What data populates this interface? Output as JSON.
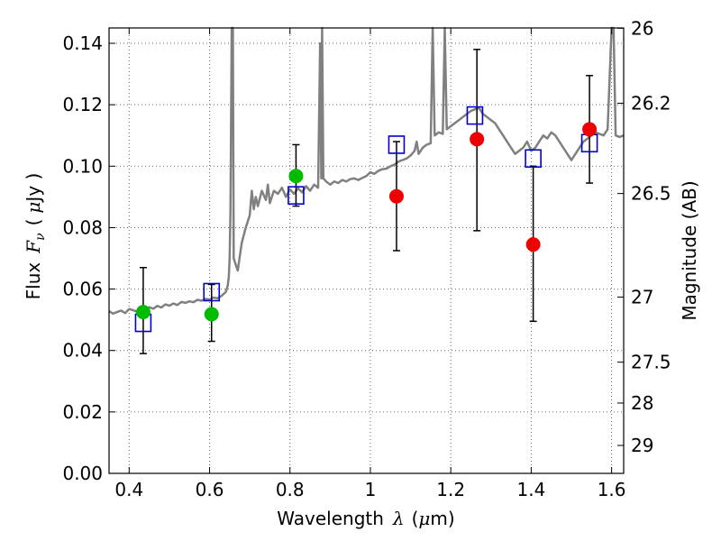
{
  "chart_data": {
    "type": "scatter",
    "xlabel_prefix": "Wavelength",
    "xlabel_symbol": "λ",
    "xlabel_unit_open": "(",
    "xlabel_unit_mu": "μ",
    "xlabel_unit_rest": "m)",
    "ylabel_prefix": "Flux",
    "ylabel_symbol": "F",
    "ylabel_subscript": "ν",
    "ylabel_unit_open": "(",
    "ylabel_unit_mu": "μ",
    "ylabel_unit_rest": "Jy )",
    "y2label": "Magnitude (AB)",
    "xlim": [
      0.35,
      1.63
    ],
    "ylim": [
      0.0,
      0.145
    ],
    "xticks": [
      0.4,
      0.6,
      0.8,
      1.0,
      1.2,
      1.4,
      1.6
    ],
    "xtick_labels": [
      "0.4",
      "0.6",
      "0.8",
      "1",
      "1.2",
      "1.4",
      "1.6"
    ],
    "yticks": [
      0.0,
      0.02,
      0.04,
      0.06,
      0.08,
      0.1,
      0.12,
      0.14
    ],
    "ytick_labels": [
      "0.00",
      "0.02",
      "0.04",
      "0.06",
      "0.08",
      "0.10",
      "0.12",
      "0.14"
    ],
    "y2ticks": [
      {
        "flux": 0.1449,
        "label": "26"
      },
      {
        "flux": 0.1205,
        "label": "26.2"
      },
      {
        "flux": 0.0911,
        "label": "26.5"
      },
      {
        "flux": 0.0574,
        "label": "27"
      },
      {
        "flux": 0.0362,
        "label": "27.5"
      },
      {
        "flux": 0.0229,
        "label": "28"
      },
      {
        "flux": 0.0091,
        "label": "29"
      }
    ],
    "grid": true,
    "colors": {
      "spectrum": "#808080",
      "model": "#0000cc",
      "detected_green": "#00bb00",
      "detected_red": "#ee0000",
      "errorbar": "#000000",
      "grid": "#666666"
    },
    "series": [
      {
        "name": "model spectrum",
        "kind": "line",
        "points": [
          [
            0.35,
            0.0528
          ],
          [
            0.36,
            0.052
          ],
          [
            0.37,
            0.0525
          ],
          [
            0.38,
            0.053
          ],
          [
            0.39,
            0.0522
          ],
          [
            0.4,
            0.0535
          ],
          [
            0.41,
            0.0531
          ],
          [
            0.42,
            0.0526
          ],
          [
            0.43,
            0.0534
          ],
          [
            0.44,
            0.053
          ],
          [
            0.45,
            0.0541
          ],
          [
            0.46,
            0.0536
          ],
          [
            0.47,
            0.0545
          ],
          [
            0.48,
            0.054
          ],
          [
            0.49,
            0.055
          ],
          [
            0.5,
            0.0546
          ],
          [
            0.51,
            0.0553
          ],
          [
            0.52,
            0.0548
          ],
          [
            0.53,
            0.0558
          ],
          [
            0.54,
            0.0555
          ],
          [
            0.55,
            0.056
          ],
          [
            0.56,
            0.0557
          ],
          [
            0.57,
            0.0565
          ],
          [
            0.58,
            0.0562
          ],
          [
            0.59,
            0.0568
          ],
          [
            0.6,
            0.0566
          ],
          [
            0.61,
            0.0572
          ],
          [
            0.62,
            0.057
          ],
          [
            0.63,
            0.0578
          ],
          [
            0.64,
            0.059
          ],
          [
            0.645,
            0.061
          ],
          [
            0.648,
            0.064
          ],
          [
            0.65,
            0.07
          ],
          [
            0.652,
            0.085
          ],
          [
            0.655,
            0.145
          ],
          [
            0.658,
            0.145
          ],
          [
            0.66,
            0.07
          ],
          [
            0.665,
            0.068
          ],
          [
            0.67,
            0.066
          ],
          [
            0.68,
            0.075
          ],
          [
            0.69,
            0.08
          ],
          [
            0.7,
            0.084
          ],
          [
            0.705,
            0.092
          ],
          [
            0.71,
            0.086
          ],
          [
            0.715,
            0.09
          ],
          [
            0.72,
            0.087
          ],
          [
            0.73,
            0.092
          ],
          [
            0.74,
            0.089
          ],
          [
            0.745,
            0.094
          ],
          [
            0.75,
            0.088
          ],
          [
            0.76,
            0.092
          ],
          [
            0.77,
            0.091
          ],
          [
            0.78,
            0.093
          ],
          [
            0.79,
            0.09
          ],
          [
            0.8,
            0.0925
          ],
          [
            0.81,
            0.091
          ],
          [
            0.82,
            0.0928
          ],
          [
            0.83,
            0.0915
          ],
          [
            0.84,
            0.0935
          ],
          [
            0.85,
            0.092
          ],
          [
            0.86,
            0.094
          ],
          [
            0.87,
            0.093
          ],
          [
            0.875,
            0.14
          ],
          [
            0.878,
            0.096
          ],
          [
            0.88,
            0.145
          ],
          [
            0.883,
            0.096
          ],
          [
            0.89,
            0.095
          ],
          [
            0.9,
            0.094
          ],
          [
            0.91,
            0.095
          ],
          [
            0.92,
            0.0945
          ],
          [
            0.93,
            0.0955
          ],
          [
            0.94,
            0.095
          ],
          [
            0.95,
            0.0958
          ],
          [
            0.96,
            0.096
          ],
          [
            0.97,
            0.0955
          ],
          [
            0.98,
            0.0962
          ],
          [
            0.99,
            0.0968
          ],
          [
            1.0,
            0.098
          ],
          [
            1.01,
            0.0975
          ],
          [
            1.02,
            0.0985
          ],
          [
            1.03,
            0.099
          ],
          [
            1.04,
            0.0992
          ],
          [
            1.05,
            0.1
          ],
          [
            1.06,
            0.1005
          ],
          [
            1.07,
            0.1015
          ],
          [
            1.08,
            0.102
          ],
          [
            1.09,
            0.1025
          ],
          [
            1.1,
            0.1035
          ],
          [
            1.11,
            0.105
          ],
          [
            1.115,
            0.108
          ],
          [
            1.12,
            0.104
          ],
          [
            1.13,
            0.106
          ],
          [
            1.14,
            0.107
          ],
          [
            1.15,
            0.1075
          ],
          [
            1.155,
            0.145
          ],
          [
            1.16,
            0.11
          ],
          [
            1.17,
            0.111
          ],
          [
            1.18,
            0.1105
          ],
          [
            1.185,
            0.145
          ],
          [
            1.19,
            0.112
          ],
          [
            1.2,
            0.113
          ],
          [
            1.21,
            0.114
          ],
          [
            1.22,
            0.115
          ],
          [
            1.23,
            0.116
          ],
          [
            1.24,
            0.117
          ],
          [
            1.25,
            0.118
          ],
          [
            1.26,
            0.1185
          ],
          [
            1.27,
            0.119
          ],
          [
            1.28,
            0.117
          ],
          [
            1.29,
            0.116
          ],
          [
            1.3,
            0.115
          ],
          [
            1.31,
            0.114
          ],
          [
            1.32,
            0.112
          ],
          [
            1.33,
            0.11
          ],
          [
            1.34,
            0.108
          ],
          [
            1.35,
            0.106
          ],
          [
            1.36,
            0.104
          ],
          [
            1.37,
            0.105
          ],
          [
            1.38,
            0.106
          ],
          [
            1.39,
            0.108
          ],
          [
            1.4,
            0.105
          ],
          [
            1.41,
            0.106
          ],
          [
            1.42,
            0.108
          ],
          [
            1.43,
            0.11
          ],
          [
            1.44,
            0.109
          ],
          [
            1.45,
            0.111
          ],
          [
            1.46,
            0.11
          ],
          [
            1.47,
            0.108
          ],
          [
            1.48,
            0.106
          ],
          [
            1.49,
            0.104
          ],
          [
            1.5,
            0.102
          ],
          [
            1.51,
            0.104
          ],
          [
            1.52,
            0.106
          ],
          [
            1.53,
            0.108
          ],
          [
            1.54,
            0.109
          ],
          [
            1.55,
            0.11
          ],
          [
            1.56,
            0.111
          ],
          [
            1.57,
            0.1105
          ],
          [
            1.58,
            0.11
          ],
          [
            1.59,
            0.112
          ],
          [
            1.6,
            0.145
          ],
          [
            1.605,
            0.145
          ],
          [
            1.61,
            0.11
          ],
          [
            1.62,
            0.1095
          ],
          [
            1.63,
            0.11
          ]
        ]
      },
      {
        "name": "model band flux",
        "kind": "open-square",
        "x": [
          0.435,
          0.605,
          0.815,
          1.065,
          1.26,
          1.405,
          1.545
        ],
        "y": [
          0.049,
          0.059,
          0.0905,
          0.107,
          0.1165,
          0.1025,
          0.1075
        ]
      },
      {
        "name": "detections (green)",
        "kind": "filled-circle",
        "color": "green",
        "x": [
          0.435,
          0.605,
          0.815
        ],
        "y": [
          0.0525,
          0.0518,
          0.0968
        ],
        "err_low": [
          0.039,
          0.043,
          0.087
        ],
        "err_high": [
          0.067,
          0.0615,
          0.107
        ]
      },
      {
        "name": "detections (red)",
        "kind": "filled-circle",
        "color": "red",
        "x": [
          1.065,
          1.265,
          1.405,
          1.545
        ],
        "y": [
          0.0902,
          0.1088,
          0.0745,
          0.112
        ],
        "err_low": [
          0.0725,
          0.079,
          0.0495,
          0.0945
        ],
        "err_high": [
          0.108,
          0.138,
          0.1,
          0.1295
        ]
      }
    ]
  }
}
